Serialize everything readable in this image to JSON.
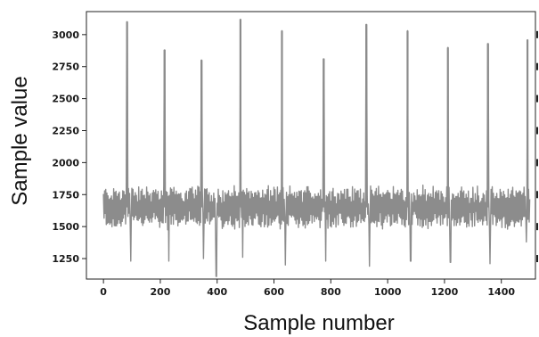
{
  "chart_data": {
    "type": "line",
    "title": "",
    "xlabel": "Sample number",
    "ylabel": "Sample value",
    "xlim": [
      -60,
      1520
    ],
    "ylim": [
      1090,
      3180
    ],
    "x_ticks": [
      0,
      200,
      400,
      600,
      800,
      1000,
      1200,
      1400
    ],
    "x_tick_labels": [
      "0",
      "200",
      "400",
      "600",
      "800",
      "1000",
      "1200",
      "1400"
    ],
    "y_ticks": [
      1250,
      1500,
      1750,
      2000,
      2250,
      2500,
      2750,
      3000
    ],
    "y_tick_labels": [
      "1250",
      "1500",
      "1750",
      "2000",
      "2250",
      "2500",
      "2750",
      "3000"
    ],
    "grid": false,
    "legend": "none",
    "line_color": "#8c8c8c",
    "series": [
      {
        "x_start": 0,
        "x_end": 1500,
        "baseline": 1650,
        "noise_amplitude": 150,
        "peaks": [
          {
            "x": 83,
            "y": 3100
          },
          {
            "x": 215,
            "y": 2880
          },
          {
            "x": 345,
            "y": 2800
          },
          {
            "x": 482,
            "y": 3120
          },
          {
            "x": 628,
            "y": 3030
          },
          {
            "x": 775,
            "y": 2810
          },
          {
            "x": 925,
            "y": 3080
          },
          {
            "x": 1070,
            "y": 3030
          },
          {
            "x": 1212,
            "y": 2900
          },
          {
            "x": 1353,
            "y": 2930
          },
          {
            "x": 1492,
            "y": 2960
          }
        ],
        "troughs": [
          {
            "x": 96,
            "y": 1230
          },
          {
            "x": 230,
            "y": 1230
          },
          {
            "x": 352,
            "y": 1250
          },
          {
            "x": 397,
            "y": 1110
          },
          {
            "x": 490,
            "y": 1260
          },
          {
            "x": 640,
            "y": 1200
          },
          {
            "x": 782,
            "y": 1230
          },
          {
            "x": 936,
            "y": 1190
          },
          {
            "x": 1081,
            "y": 1230
          },
          {
            "x": 1221,
            "y": 1220
          },
          {
            "x": 1360,
            "y": 1210
          },
          {
            "x": 1488,
            "y": 1380
          }
        ]
      }
    ]
  }
}
